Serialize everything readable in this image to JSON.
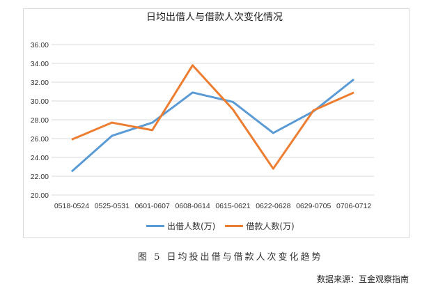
{
  "chart_data": {
    "type": "line",
    "title": "日均出借人与借款人次变化情况",
    "categories": [
      "0518-0524",
      "0525-0531",
      "0601-0607",
      "0608-0614",
      "0615-0621",
      "0622-0628",
      "0629-0705",
      "0706-0712"
    ],
    "series": [
      {
        "name": "出借人数(万)",
        "color": "#5b9bd5",
        "values": [
          22.5,
          26.3,
          27.7,
          30.9,
          29.9,
          26.6,
          28.9,
          32.3
        ]
      },
      {
        "name": "借款人数(万)",
        "color": "#ed7d31",
        "values": [
          25.9,
          27.7,
          26.9,
          33.8,
          29.1,
          22.8,
          29.0,
          30.9
        ]
      }
    ],
    "ylim": [
      20,
      36
    ],
    "yticks": [
      "20.00",
      "22.00",
      "24.00",
      "26.00",
      "28.00",
      "30.00",
      "32.00",
      "34.00",
      "36.00"
    ],
    "grid": true,
    "legend": "bottom"
  },
  "caption": "图 5 日均投出借与借款人次变化趋势",
  "source": "数据来源：互金观察指南"
}
